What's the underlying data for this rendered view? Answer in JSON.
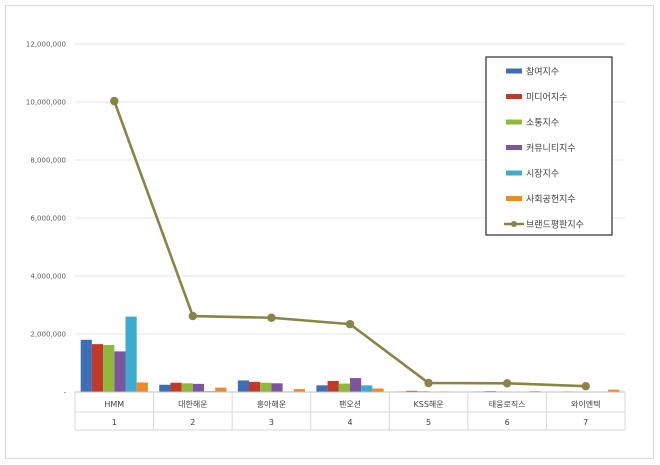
{
  "chart_data": {
    "type": "bar",
    "ylim": [
      0,
      12000000
    ],
    "y_ticks": [
      "-",
      "2,000,000",
      "4,000,000",
      "6,000,000",
      "8,000,000",
      "10,000,000",
      "12,000,000"
    ],
    "categories": [
      "HMM",
      "대한해운",
      "흥아해운",
      "팬오션",
      "KSS해운",
      "태웅로직스",
      "와이엔텍"
    ],
    "category_index": [
      "1",
      "2",
      "3",
      "4",
      "5",
      "6",
      "7"
    ],
    "grid": true,
    "legend_position": "top-right",
    "series": [
      {
        "name": "참여지수",
        "color": "#3e6eb4",
        "values": [
          1800000,
          250000,
          400000,
          230000,
          20000,
          20000,
          10000
        ]
      },
      {
        "name": "미디어지수",
        "color": "#c0392b",
        "values": [
          1650000,
          320000,
          350000,
          380000,
          40000,
          30000,
          20000
        ]
      },
      {
        "name": "소통지수",
        "color": "#8fb93a",
        "values": [
          1620000,
          300000,
          320000,
          290000,
          30000,
          20000,
          10000
        ]
      },
      {
        "name": "커뮤니티지수",
        "color": "#7b55a0",
        "values": [
          1400000,
          280000,
          300000,
          480000,
          10000,
          10000,
          5000
        ]
      },
      {
        "name": "시장지수",
        "color": "#3caccc",
        "values": [
          2600000,
          30000,
          20000,
          230000,
          20000,
          10000,
          5000
        ]
      },
      {
        "name": "사회공헌지수",
        "color": "#f08a24",
        "values": [
          330000,
          150000,
          100000,
          120000,
          10000,
          30000,
          80000
        ]
      },
      {
        "name": "브랜드평판지수",
        "color": "#8a8445",
        "type": "line",
        "values": [
          10030000,
          2620000,
          2560000,
          2340000,
          310000,
          300000,
          200000
        ]
      }
    ]
  }
}
